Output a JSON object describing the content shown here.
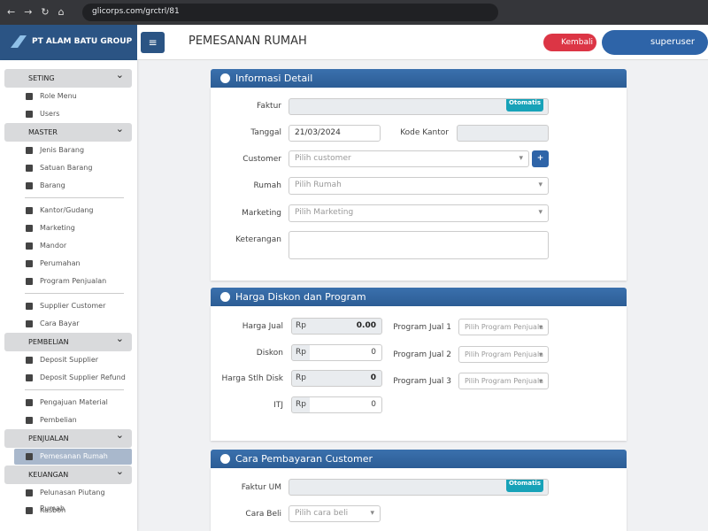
{
  "browser": {
    "url": "glicorps.com/grctrl/81"
  },
  "brand": "PT ALAM BATU GROUP",
  "sidebar": [
    {
      "title": "SETING",
      "groups": [
        [
          "Role Menu",
          "Users"
        ]
      ]
    },
    {
      "title": "MASTER",
      "groups": [
        [
          "Jenis Barang",
          "Satuan Barang",
          "Barang"
        ],
        [
          "Kantor/Gudang",
          "Marketing",
          "Mandor",
          "Perumahan",
          "Program Penjualan"
        ],
        [
          "Supplier Customer",
          "Cara Bayar"
        ]
      ]
    },
    {
      "title": "PEMBELIAN",
      "groups": [
        [
          "Deposit Supplier",
          "Deposit Supplier Refund"
        ],
        [
          "Pengajuan Material",
          "Pembelian"
        ]
      ]
    },
    {
      "title": "PENJUALAN",
      "groups": [
        [
          "Pemesanan Rumah"
        ]
      ]
    },
    {
      "title": "KEUANGAN",
      "groups": [
        [
          "Pelunasan Piutang Rumah",
          "Kasbon"
        ]
      ]
    }
  ],
  "header": {
    "title": "PEMESANAN RUMAH",
    "back_button": "Kembali",
    "user": "superuser"
  },
  "panels": [
    {
      "title": "Informasi Detail",
      "faktur": {
        "label": "Faktur",
        "badge": "Otomatis"
      },
      "tanggal": {
        "label": "Tanggal",
        "value": "21/03/2024"
      },
      "kode_kantor": {
        "label": "Kode Kantor"
      },
      "customer": {
        "label": "Customer",
        "placeholder": "Pilih customer"
      },
      "rumah": {
        "label": "Rumah",
        "placeholder": "Pilih Rumah"
      },
      "marketing": {
        "label": "Marketing",
        "placeholder": "Pilih Marketing"
      },
      "keterangan": {
        "label": "Keterangan"
      }
    },
    {
      "title": "Harga Diskon dan Program",
      "prices": [
        {
          "label": "Harga Jual",
          "prefix": "Rp",
          "value": "0.00"
        },
        {
          "label": "Diskon",
          "prefix": "Rp",
          "value": "0"
        },
        {
          "label": "Harga Stlh Disk",
          "prefix": "Rp",
          "value": "0"
        },
        {
          "label": "ITJ",
          "prefix": "Rp",
          "value": "0"
        }
      ],
      "programs": [
        {
          "label": "Program Jual 1",
          "placeholder": "Pilih Program Penjuala"
        },
        {
          "label": "Program Jual 2",
          "placeholder": "Pilih Program Penjuala"
        },
        {
          "label": "Program Jual 3",
          "placeholder": "Pilih Program Penjuala"
        }
      ]
    },
    {
      "title": "Cara Pembayaran Customer",
      "faktur_um": {
        "label": "Faktur UM",
        "badge": "Otomatis"
      },
      "cara_beli": {
        "label": "Cara Beli",
        "placeholder": "Pilih cara beli"
      }
    }
  ]
}
